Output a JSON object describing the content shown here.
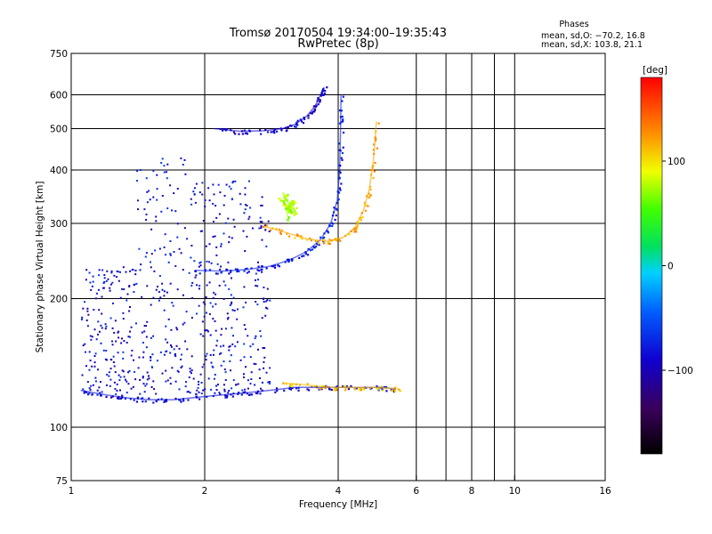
{
  "header": {
    "title": "Tromsø 20170504 19:34:00–19:35:43",
    "subtitle": "RwPretec (8p)"
  },
  "info": {
    "heading": "Phases",
    "line1": "mean, sd,O: −70.2, 16.8",
    "line2": "mean, sd,X: 103.8, 21.1"
  },
  "colorbar": {
    "label": "[deg]",
    "range": [
      -180,
      180
    ],
    "ticks": [
      "100",
      "0",
      "−100"
    ],
    "tick_values": [
      100,
      0,
      -100
    ]
  },
  "chart_data": {
    "type": "scatter",
    "title": "Tromsø 20170504 19:34:00–19:35:43",
    "subtitle": "RwPretec (8p)",
    "xlabel": "Frequency [MHz]",
    "ylabel": "Stationary phase Virtual Height [km]",
    "x_scale": "log",
    "y_scale": "log",
    "xlim": [
      1,
      16
    ],
    "ylim": [
      75,
      750
    ],
    "x_ticks": [
      1,
      2,
      4,
      6,
      8,
      10,
      16
    ],
    "x_tick_labels": [
      "1",
      "2",
      "4",
      "6",
      "8",
      "10",
      "16"
    ],
    "x_gridlines": [
      2,
      4,
      6,
      7,
      8,
      9,
      10
    ],
    "y_ticks": [
      75,
      100,
      200,
      300,
      400,
      500,
      600,
      750
    ],
    "y_tick_labels": [
      "75",
      "100",
      "200",
      "300",
      "400",
      "500",
      "600",
      "750"
    ],
    "y_gridlines": [
      100,
      200,
      300,
      400,
      500,
      600
    ],
    "color_scale": "rainbow, phase in deg",
    "grid": true,
    "traces": [
      {
        "description": "lower E-layer trace",
        "phase": -85,
        "points": [
          [
            1.05,
            122
          ],
          [
            1.2,
            119
          ],
          [
            1.35,
            117
          ],
          [
            1.5,
            116
          ],
          [
            1.7,
            116
          ],
          [
            2.0,
            118
          ],
          [
            2.4,
            120
          ],
          [
            2.8,
            122
          ],
          [
            3.2,
            124
          ],
          [
            3.8,
            124
          ],
          [
            4.5,
            124
          ],
          [
            5.0,
            124
          ],
          [
            5.4,
            123
          ]
        ]
      },
      {
        "description": "lower trace high end",
        "phase": 110,
        "points": [
          [
            3.0,
            127
          ],
          [
            3.3,
            126
          ],
          [
            3.8,
            124
          ],
          [
            4.4,
            124
          ],
          [
            4.9,
            124
          ],
          [
            5.5,
            123
          ]
        ]
      },
      {
        "description": "O-mode F trace",
        "phase": -75,
        "points": [
          [
            1.9,
            233
          ],
          [
            2.2,
            232
          ],
          [
            2.5,
            234
          ],
          [
            2.8,
            238
          ],
          [
            3.1,
            246
          ],
          [
            3.4,
            258
          ],
          [
            3.65,
            275
          ],
          [
            3.85,
            300
          ],
          [
            3.98,
            340
          ],
          [
            4.03,
            400
          ],
          [
            4.05,
            500
          ],
          [
            4.06,
            600
          ]
        ]
      },
      {
        "description": "X-mode F trace",
        "phase": 120,
        "points": [
          [
            2.7,
            296
          ],
          [
            3.0,
            287
          ],
          [
            3.4,
            276
          ],
          [
            3.8,
            272
          ],
          [
            4.1,
            278
          ],
          [
            4.35,
            292
          ],
          [
            4.55,
            320
          ],
          [
            4.7,
            360
          ],
          [
            4.8,
            420
          ],
          [
            4.88,
            520
          ]
        ]
      },
      {
        "description": "Upper echo trace",
        "phase": -90,
        "points": [
          [
            2.1,
            500
          ],
          [
            2.4,
            493
          ],
          [
            2.7,
            494
          ],
          [
            3.0,
            500
          ],
          [
            3.2,
            512
          ],
          [
            3.4,
            535
          ],
          [
            3.55,
            565
          ],
          [
            3.65,
            600
          ],
          [
            3.72,
            625
          ]
        ]
      },
      {
        "description": "Yellow cluster",
        "phase": 75,
        "points": [
          [
            2.95,
            345
          ],
          [
            3.05,
            330
          ],
          [
            3.1,
            320
          ],
          [
            3.15,
            340
          ],
          [
            3.2,
            312
          ],
          [
            3.0,
            355
          ],
          [
            3.1,
            300
          ]
        ]
      }
    ]
  }
}
